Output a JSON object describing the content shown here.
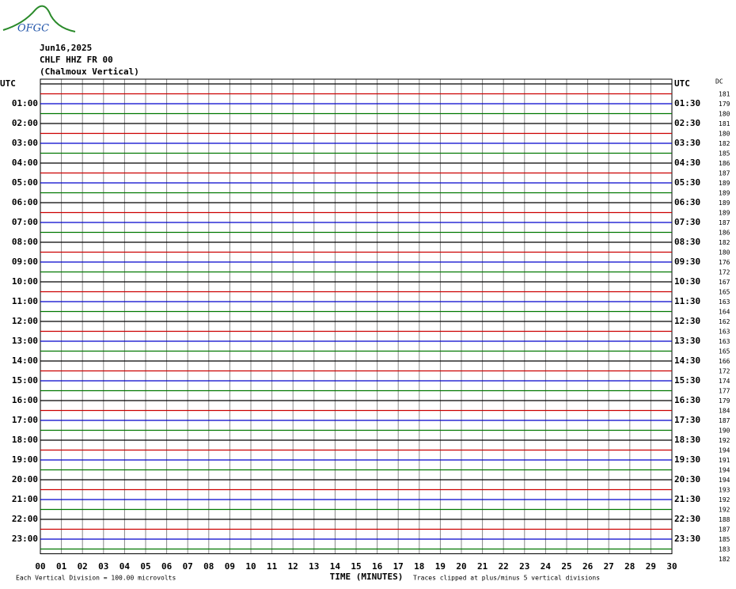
{
  "header": {
    "logo": "OFGC",
    "date": "Jun16,2025",
    "station": "CHLF HHZ FR 00",
    "location": "(Chalmoux Vertical)"
  },
  "plot": {
    "colors": [
      "#000000",
      "#cc0000",
      "#0000cc",
      "#007700"
    ],
    "left_labels": [
      "UTC",
      "01:00",
      "02:00",
      "03:00",
      "04:00",
      "05:00",
      "06:00",
      "07:00",
      "08:00",
      "09:00",
      "10:00",
      "11:00",
      "12:00",
      "13:00",
      "14:00",
      "15:00",
      "16:00",
      "17:00",
      "18:00",
      "19:00",
      "20:00",
      "21:00",
      "22:00",
      "23:00"
    ],
    "right_labels": [
      "UTC",
      "01:30",
      "02:30",
      "03:30",
      "04:30",
      "05:30",
      "06:30",
      "07:30",
      "08:30",
      "09:30",
      "10:30",
      "11:30",
      "12:30",
      "13:30",
      "14:30",
      "15:30",
      "16:30",
      "17:30",
      "18:30",
      "19:30",
      "20:30",
      "21:30",
      "22:30",
      "23:30"
    ],
    "dc_label": "DC",
    "dc_values": [
      181,
      179,
      180,
      181,
      180,
      182,
      185,
      186,
      187,
      189,
      189,
      189,
      189,
      187,
      186,
      182,
      180,
      176,
      172,
      167,
      165,
      163,
      164,
      162,
      163,
      163,
      165,
      166,
      172,
      174,
      177,
      179,
      184,
      187,
      190,
      192,
      194,
      191,
      194,
      194,
      193,
      192,
      192,
      188,
      187,
      185,
      183,
      182
    ],
    "x_labels": [
      "00",
      "01",
      "02",
      "03",
      "04",
      "05",
      "06",
      "07",
      "08",
      "09",
      "10",
      "11",
      "12",
      "13",
      "14",
      "15",
      "16",
      "17",
      "18",
      "19",
      "20",
      "21",
      "22",
      "23",
      "24",
      "25",
      "26",
      "27",
      "28",
      "29",
      "30"
    ],
    "x_title": "TIME (MINUTES)"
  },
  "footer": {
    "scale": "Each Vertical Division =  100.00 microvolts",
    "clip": "Traces clipped at plus/minus 5 vertical divisions"
  }
}
